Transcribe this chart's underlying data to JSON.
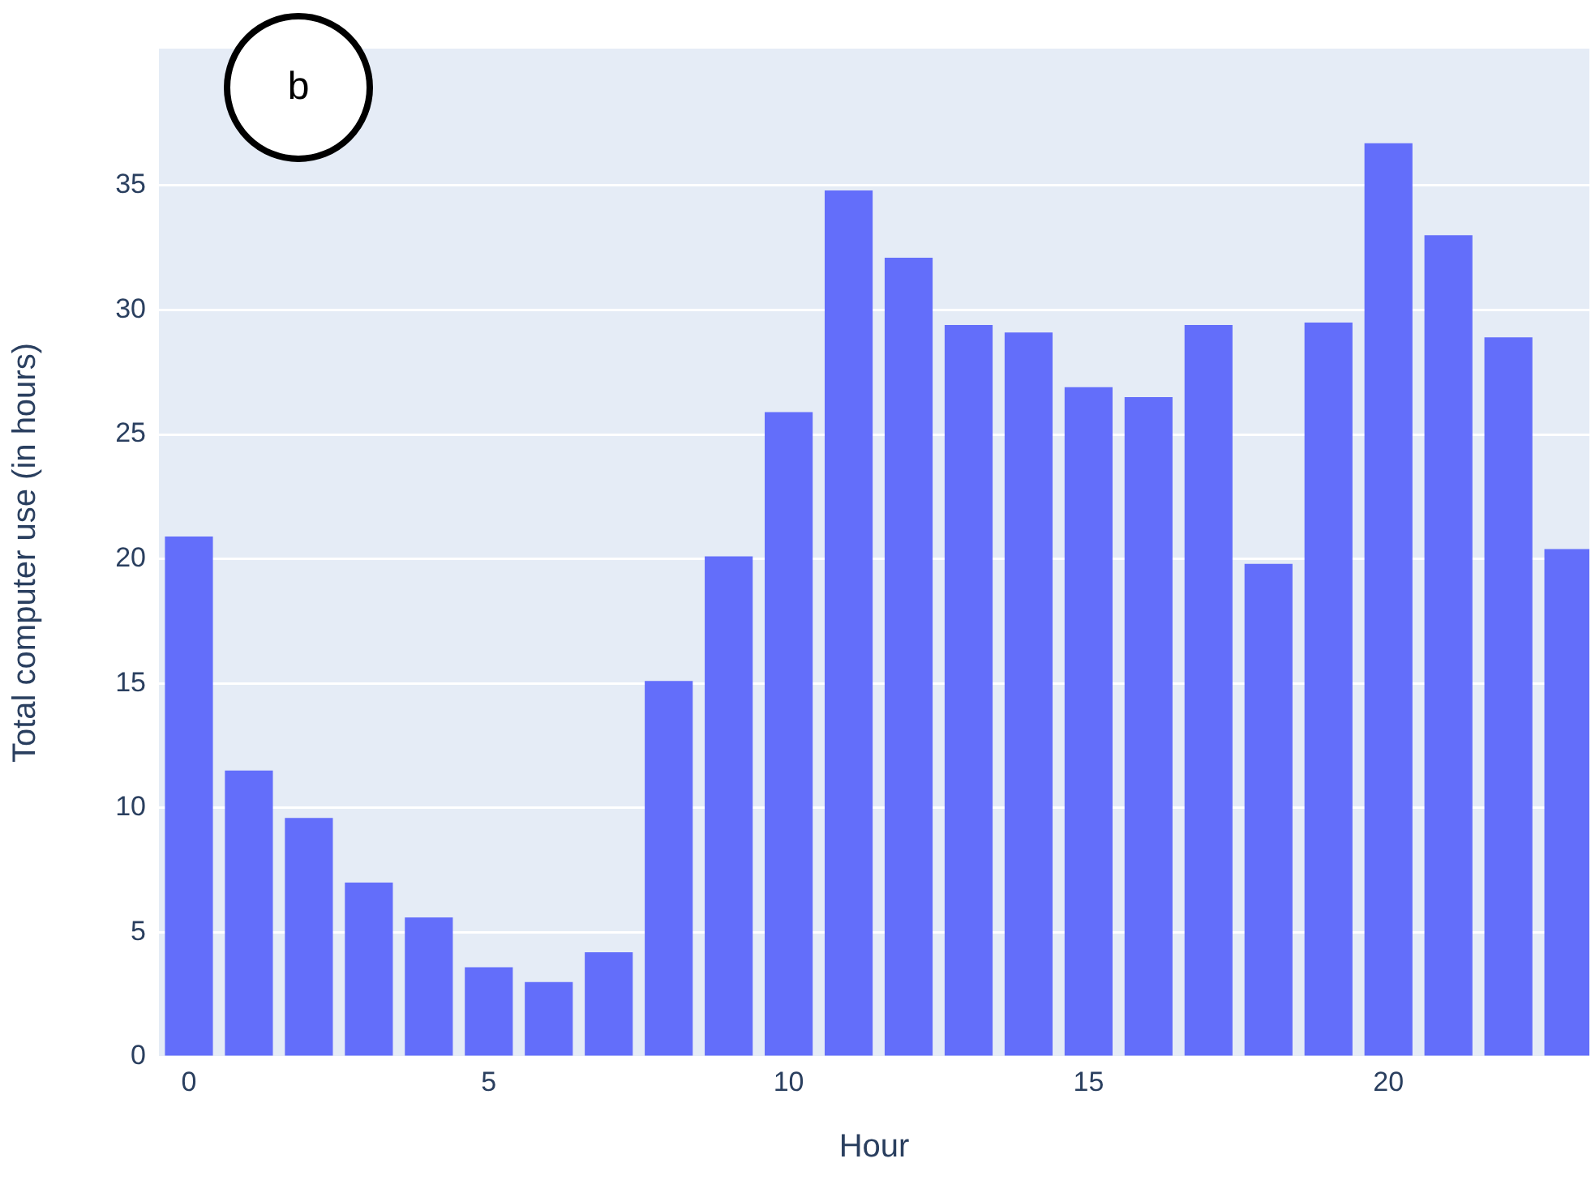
{
  "chart_data": {
    "type": "bar",
    "xlabel": "Hour",
    "ylabel": "Total computer use (in hours)",
    "annotations": [
      "b"
    ],
    "x": [
      0,
      1,
      2,
      3,
      4,
      5,
      6,
      7,
      8,
      9,
      10,
      11,
      12,
      13,
      14,
      15,
      16,
      17,
      18,
      19,
      20,
      21,
      22,
      23
    ],
    "values": [
      20.9,
      11.5,
      9.6,
      7.0,
      5.6,
      3.6,
      3.0,
      4.2,
      15.1,
      20.1,
      25.9,
      34.8,
      32.1,
      29.4,
      29.1,
      26.9,
      26.5,
      29.4,
      19.8,
      29.5,
      36.7,
      33.0,
      28.9,
      20.4
    ],
    "color": "#636efa",
    "xlim": [
      -0.5,
      23.35
    ],
    "xticks": [
      0,
      5,
      10,
      15,
      20
    ],
    "ylim": [
      0,
      40.5
    ],
    "yticks": [
      0,
      5,
      10,
      15,
      20,
      25,
      30,
      35
    ],
    "grid": "y"
  }
}
